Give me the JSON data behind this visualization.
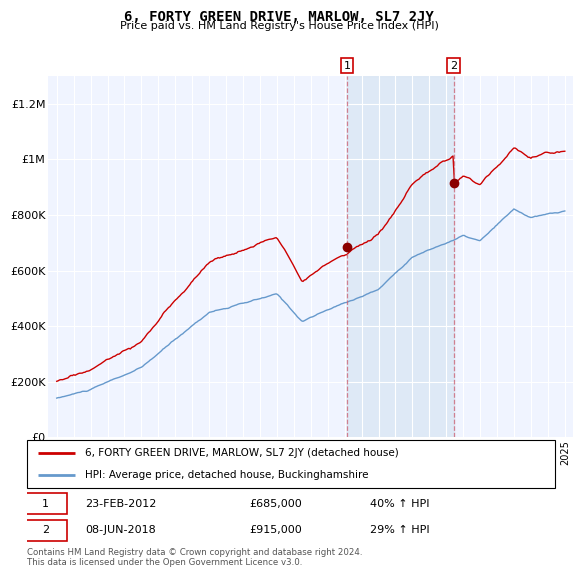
{
  "title": "6, FORTY GREEN DRIVE, MARLOW, SL7 2JY",
  "subtitle": "Price paid vs. HM Land Registry's House Price Index (HPI)",
  "hpi_label": "HPI: Average price, detached house, Buckinghamshire",
  "property_label": "6, FORTY GREEN DRIVE, MARLOW, SL7 2JY (detached house)",
  "footnote": "Contains HM Land Registry data © Crown copyright and database right 2024.\nThis data is licensed under the Open Government Licence v3.0.",
  "sale1_label": "23-FEB-2012",
  "sale1_price": "£685,000",
  "sale1_pct": "40% ↑ HPI",
  "sale1_year": 2012.15,
  "sale1_value": 685000,
  "sale2_label": "08-JUN-2018",
  "sale2_price": "£915,000",
  "sale2_pct": "29% ↑ HPI",
  "sale2_year": 2018.44,
  "sale2_value": 915000,
  "property_color": "#cc0000",
  "hpi_color": "#6699cc",
  "shade_color": "#dce8f5",
  "background_color": "#f0f4ff",
  "ylim_min": 0,
  "ylim_max": 1300000,
  "xlim_min": 1994.5,
  "xlim_max": 2025.5
}
